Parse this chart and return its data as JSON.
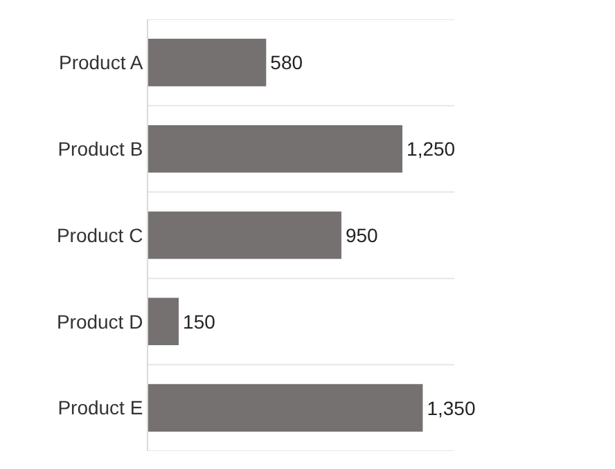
{
  "chart_data": {
    "type": "bar",
    "orientation": "horizontal",
    "categories": [
      "Product A",
      "Product B",
      "Product C",
      "Product D",
      "Product E"
    ],
    "values": [
      580,
      1250,
      950,
      150,
      1350
    ],
    "value_labels": [
      "580",
      "1,250",
      "950",
      "150",
      "1,350"
    ],
    "color": "#767171",
    "grid": "y",
    "tick_labels": "y"
  }
}
